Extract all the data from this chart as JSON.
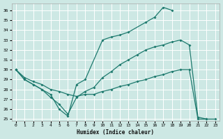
{
  "xlabel": "Humidex (Indice chaleur)",
  "bg_color": "#cde8e4",
  "grid_color": "#ffffff",
  "line_color": "#1e7a6e",
  "xlim": [
    -0.5,
    23.5
  ],
  "ylim": [
    24.8,
    36.7
  ],
  "yticks": [
    25,
    26,
    27,
    28,
    29,
    30,
    31,
    32,
    33,
    34,
    35,
    36
  ],
  "xticks": [
    0,
    1,
    2,
    3,
    4,
    5,
    6,
    7,
    8,
    9,
    10,
    11,
    12,
    13,
    14,
    15,
    16,
    17,
    18,
    19,
    20,
    21,
    22,
    23
  ],
  "curve1_x": [
    0,
    1,
    2,
    3,
    4,
    5,
    6,
    7,
    8,
    10,
    11,
    12,
    13,
    15,
    16,
    17,
    18
  ],
  "curve1_y": [
    30.0,
    29.0,
    28.5,
    28.0,
    27.5,
    26.0,
    25.3,
    28.5,
    29.0,
    33.0,
    33.3,
    33.5,
    33.8,
    34.8,
    35.3,
    36.3,
    36.0
  ],
  "curve2_x": [
    0,
    1,
    2,
    3,
    4,
    5,
    6,
    7,
    8,
    9,
    10,
    11,
    12,
    13,
    14,
    15,
    16,
    17,
    18,
    19,
    20,
    21,
    22
  ],
  "curve2_y": [
    30.0,
    29.0,
    28.5,
    28.0,
    27.2,
    26.5,
    25.5,
    27.2,
    27.8,
    28.2,
    29.2,
    29.8,
    30.5,
    31.0,
    31.5,
    32.0,
    32.3,
    32.5,
    32.8,
    33.0,
    32.5,
    25.2,
    25.0
  ],
  "curve3_x": [
    0,
    1,
    2,
    3,
    4,
    5,
    6,
    7,
    8,
    9,
    10,
    11,
    12,
    13,
    14,
    15,
    16,
    17,
    18,
    19,
    20,
    21,
    22,
    23
  ],
  "curve3_y": [
    30.0,
    29.2,
    28.8,
    28.5,
    28.0,
    27.8,
    27.5,
    27.3,
    27.5,
    27.5,
    27.8,
    28.0,
    28.3,
    28.5,
    28.8,
    29.0,
    29.3,
    29.5,
    29.8,
    30.0,
    30.0,
    25.0,
    25.0,
    25.0
  ]
}
